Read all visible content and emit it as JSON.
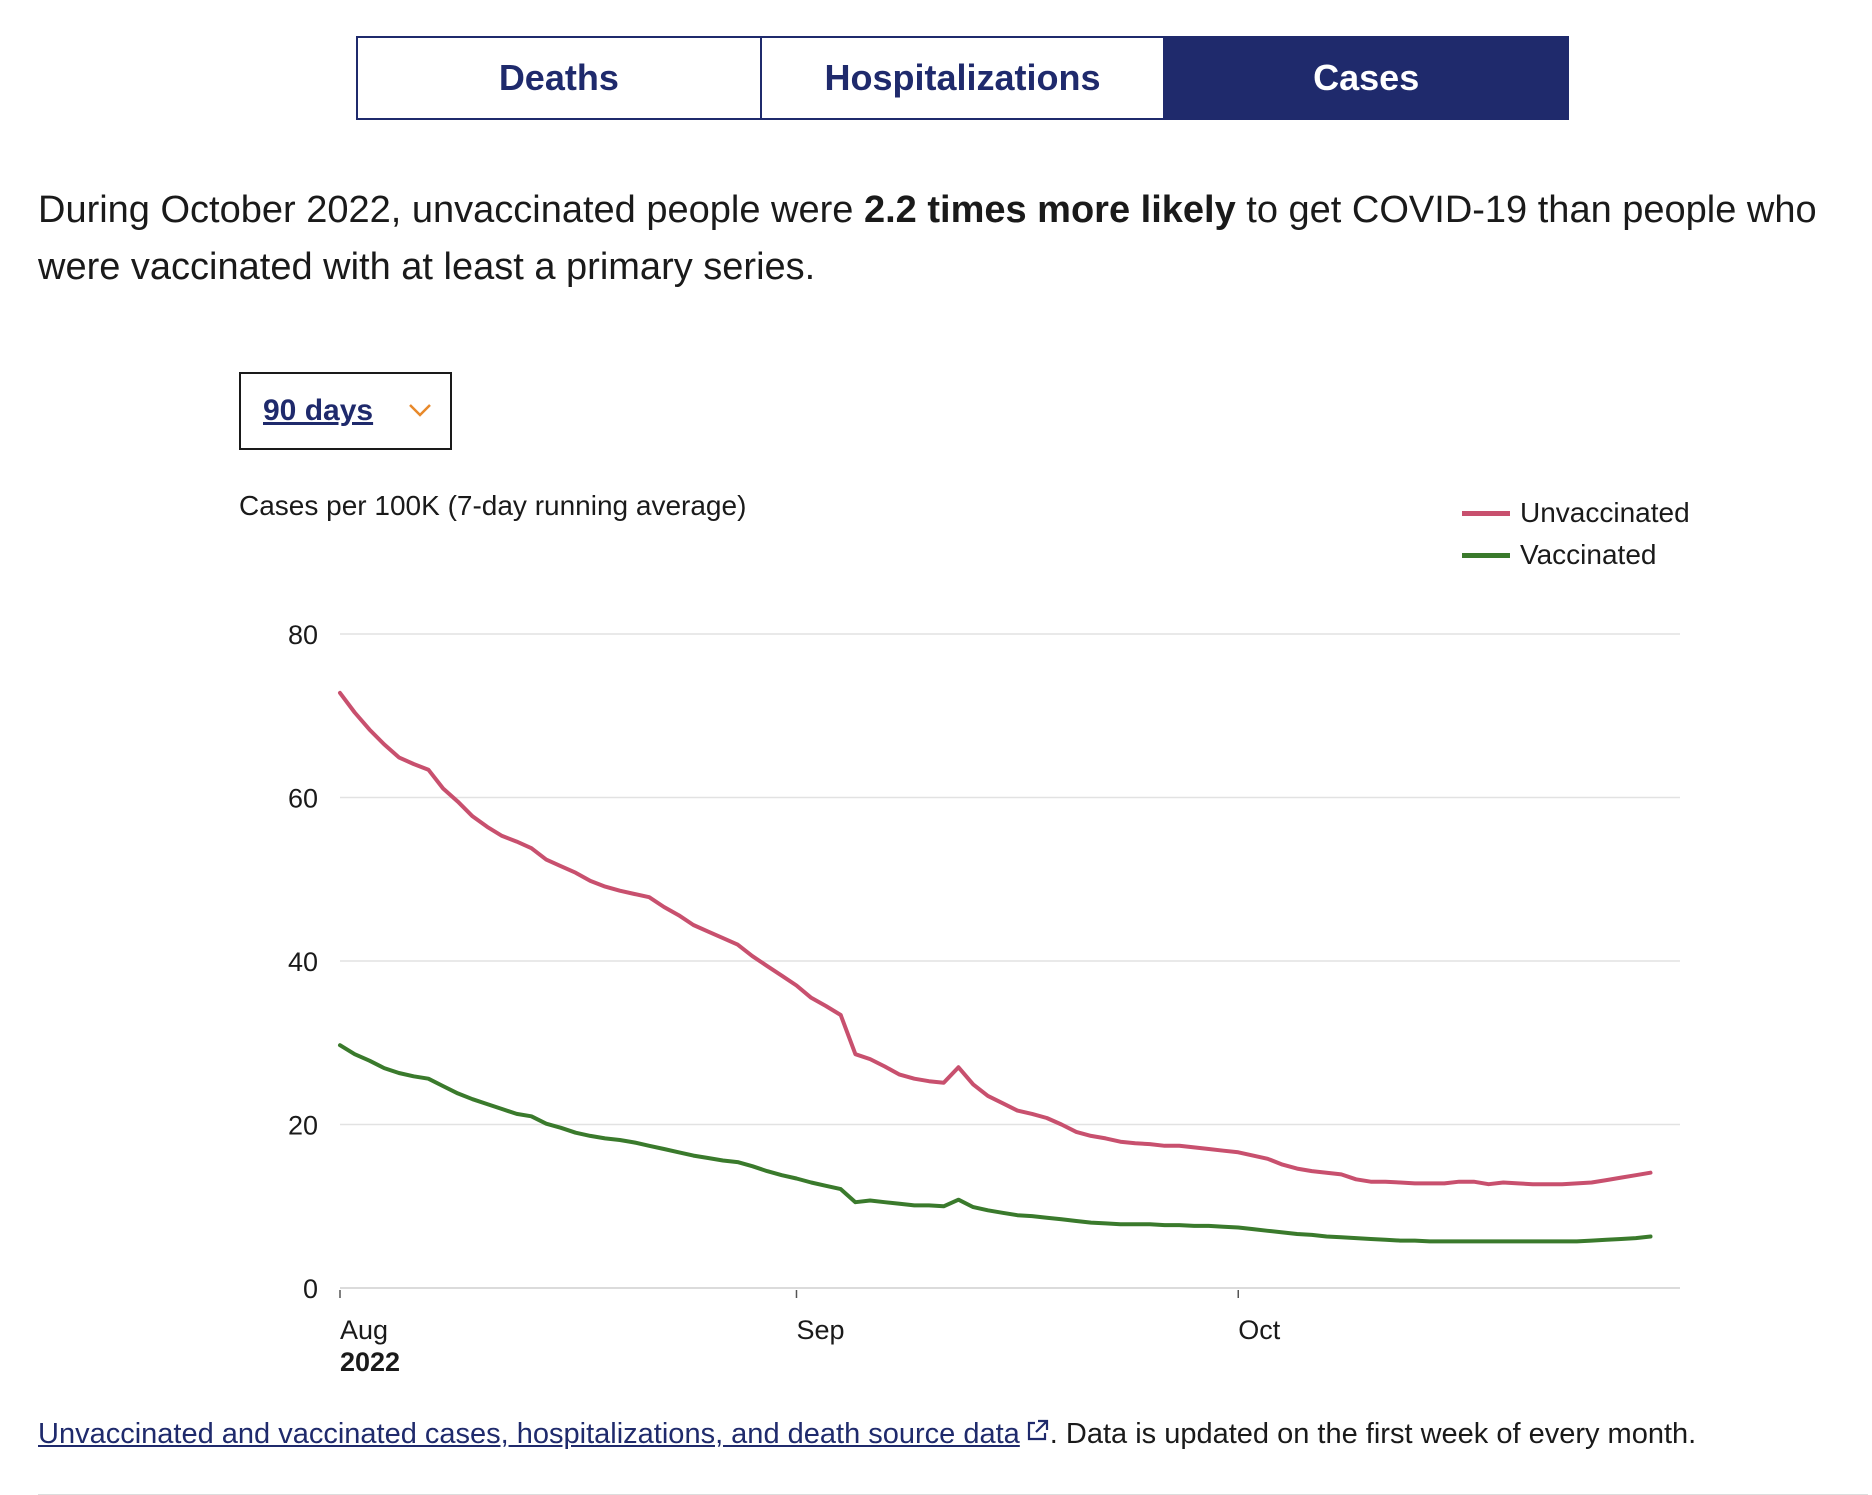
{
  "tabs": [
    {
      "label": "Deaths",
      "active": false
    },
    {
      "label": "Hospitalizations",
      "active": false
    },
    {
      "label": "Cases",
      "active": true
    }
  ],
  "summary": {
    "before": "During October 2022, unvaccinated people were ",
    "bold": "2.2 times more likely",
    "after": " to get COVID-19 than people who were vaccinated with at least a primary series."
  },
  "range_select": {
    "value": "90 days",
    "icon": "chevron-down-icon"
  },
  "footer": {
    "link_text": "Unvaccinated and vaccinated cases, hospitalizations, and death source data",
    "rest": ". Data is updated on the first week of every month."
  },
  "colors": {
    "unvaccinated": "#c8506e",
    "vaccinated": "#3a7a2c",
    "brand": "#1f2a6c",
    "chevron": "#e8892a"
  },
  "chart_data": {
    "type": "line",
    "ylabel": "Cases per 100K (7-day running average)",
    "ylim": [
      0,
      80
    ],
    "yticks": [
      0,
      20,
      40,
      60,
      80
    ],
    "xlim": [
      "2022-08-01",
      "2022-10-31"
    ],
    "xticks": [
      {
        "date": "2022-08-01",
        "label": "Aug",
        "sublabel": "2022"
      },
      {
        "date": "2022-09-01",
        "label": "Sep",
        "sublabel": ""
      },
      {
        "date": "2022-10-01",
        "label": "Oct",
        "sublabel": ""
      }
    ],
    "grid": true,
    "legend_position": "top-right",
    "series": [
      {
        "name": "Unvaccinated",
        "points": [
          [
            "2022-08-01",
            72.8
          ],
          [
            "2022-08-02",
            70.4
          ],
          [
            "2022-08-03",
            68.3
          ],
          [
            "2022-08-04",
            66.5
          ],
          [
            "2022-08-05",
            64.9
          ],
          [
            "2022-08-06",
            64.1
          ],
          [
            "2022-08-07",
            63.4
          ],
          [
            "2022-08-08",
            61.1
          ],
          [
            "2022-08-09",
            59.5
          ],
          [
            "2022-08-10",
            57.7
          ],
          [
            "2022-08-11",
            56.4
          ],
          [
            "2022-08-12",
            55.3
          ],
          [
            "2022-08-13",
            54.6
          ],
          [
            "2022-08-14",
            53.8
          ],
          [
            "2022-08-15",
            52.4
          ],
          [
            "2022-08-16",
            51.6
          ],
          [
            "2022-08-17",
            50.8
          ],
          [
            "2022-08-18",
            49.8
          ],
          [
            "2022-08-19",
            49.1
          ],
          [
            "2022-08-20",
            48.6
          ],
          [
            "2022-08-21",
            48.2
          ],
          [
            "2022-08-22",
            47.8
          ],
          [
            "2022-08-23",
            46.6
          ],
          [
            "2022-08-24",
            45.6
          ],
          [
            "2022-08-25",
            44.4
          ],
          [
            "2022-08-26",
            43.6
          ],
          [
            "2022-08-27",
            42.8
          ],
          [
            "2022-08-28",
            42.0
          ],
          [
            "2022-08-29",
            40.6
          ],
          [
            "2022-08-30",
            39.4
          ],
          [
            "2022-08-31",
            38.2
          ],
          [
            "2022-09-01",
            37.0
          ],
          [
            "2022-09-02",
            35.5
          ],
          [
            "2022-09-03",
            34.5
          ],
          [
            "2022-09-04",
            33.4
          ],
          [
            "2022-09-05",
            28.6
          ],
          [
            "2022-09-06",
            28.0
          ],
          [
            "2022-09-07",
            27.1
          ],
          [
            "2022-09-08",
            26.1
          ],
          [
            "2022-09-09",
            25.6
          ],
          [
            "2022-09-10",
            25.3
          ],
          [
            "2022-09-11",
            25.1
          ],
          [
            "2022-09-12",
            27.0
          ],
          [
            "2022-09-13",
            24.9
          ],
          [
            "2022-09-14",
            23.5
          ],
          [
            "2022-09-15",
            22.6
          ],
          [
            "2022-09-16",
            21.7
          ],
          [
            "2022-09-17",
            21.3
          ],
          [
            "2022-09-18",
            20.8
          ],
          [
            "2022-09-19",
            20.0
          ],
          [
            "2022-09-20",
            19.1
          ],
          [
            "2022-09-21",
            18.6
          ],
          [
            "2022-09-22",
            18.3
          ],
          [
            "2022-09-23",
            17.9
          ],
          [
            "2022-09-24",
            17.7
          ],
          [
            "2022-09-25",
            17.6
          ],
          [
            "2022-09-26",
            17.4
          ],
          [
            "2022-09-27",
            17.4
          ],
          [
            "2022-09-28",
            17.2
          ],
          [
            "2022-09-29",
            17.0
          ],
          [
            "2022-09-30",
            16.8
          ],
          [
            "2022-10-01",
            16.6
          ],
          [
            "2022-10-02",
            16.2
          ],
          [
            "2022-10-03",
            15.8
          ],
          [
            "2022-10-04",
            15.1
          ],
          [
            "2022-10-05",
            14.6
          ],
          [
            "2022-10-06",
            14.3
          ],
          [
            "2022-10-07",
            14.1
          ],
          [
            "2022-10-08",
            13.9
          ],
          [
            "2022-10-09",
            13.3
          ],
          [
            "2022-10-10",
            13.0
          ],
          [
            "2022-10-11",
            13.0
          ],
          [
            "2022-10-12",
            12.9
          ],
          [
            "2022-10-13",
            12.8
          ],
          [
            "2022-10-14",
            12.8
          ],
          [
            "2022-10-15",
            12.8
          ],
          [
            "2022-10-16",
            13.0
          ],
          [
            "2022-10-17",
            13.0
          ],
          [
            "2022-10-18",
            12.7
          ],
          [
            "2022-10-19",
            12.9
          ],
          [
            "2022-10-20",
            12.8
          ],
          [
            "2022-10-21",
            12.7
          ],
          [
            "2022-10-22",
            12.7
          ],
          [
            "2022-10-23",
            12.7
          ],
          [
            "2022-10-24",
            12.8
          ],
          [
            "2022-10-25",
            12.9
          ],
          [
            "2022-10-26",
            13.2
          ],
          [
            "2022-10-27",
            13.5
          ],
          [
            "2022-10-28",
            13.8
          ],
          [
            "2022-10-29",
            14.1
          ]
        ]
      },
      {
        "name": "Vaccinated",
        "points": [
          [
            "2022-08-01",
            29.7
          ],
          [
            "2022-08-02",
            28.6
          ],
          [
            "2022-08-03",
            27.8
          ],
          [
            "2022-08-04",
            26.9
          ],
          [
            "2022-08-05",
            26.3
          ],
          [
            "2022-08-06",
            25.9
          ],
          [
            "2022-08-07",
            25.6
          ],
          [
            "2022-08-08",
            24.7
          ],
          [
            "2022-08-09",
            23.8
          ],
          [
            "2022-08-10",
            23.1
          ],
          [
            "2022-08-11",
            22.5
          ],
          [
            "2022-08-12",
            21.9
          ],
          [
            "2022-08-13",
            21.3
          ],
          [
            "2022-08-14",
            21.0
          ],
          [
            "2022-08-15",
            20.1
          ],
          [
            "2022-08-16",
            19.6
          ],
          [
            "2022-08-17",
            19.0
          ],
          [
            "2022-08-18",
            18.6
          ],
          [
            "2022-08-19",
            18.3
          ],
          [
            "2022-08-20",
            18.1
          ],
          [
            "2022-08-21",
            17.8
          ],
          [
            "2022-08-22",
            17.4
          ],
          [
            "2022-08-23",
            17.0
          ],
          [
            "2022-08-24",
            16.6
          ],
          [
            "2022-08-25",
            16.2
          ],
          [
            "2022-08-26",
            15.9
          ],
          [
            "2022-08-27",
            15.6
          ],
          [
            "2022-08-28",
            15.4
          ],
          [
            "2022-08-29",
            14.9
          ],
          [
            "2022-08-30",
            14.3
          ],
          [
            "2022-08-31",
            13.8
          ],
          [
            "2022-09-01",
            13.4
          ],
          [
            "2022-09-02",
            12.9
          ],
          [
            "2022-09-03",
            12.5
          ],
          [
            "2022-09-04",
            12.1
          ],
          [
            "2022-09-05",
            10.5
          ],
          [
            "2022-09-06",
            10.7
          ],
          [
            "2022-09-07",
            10.5
          ],
          [
            "2022-09-08",
            10.3
          ],
          [
            "2022-09-09",
            10.1
          ],
          [
            "2022-09-10",
            10.1
          ],
          [
            "2022-09-11",
            10.0
          ],
          [
            "2022-09-12",
            10.8
          ],
          [
            "2022-09-13",
            9.9
          ],
          [
            "2022-09-14",
            9.5
          ],
          [
            "2022-09-15",
            9.2
          ],
          [
            "2022-09-16",
            8.9
          ],
          [
            "2022-09-17",
            8.8
          ],
          [
            "2022-09-18",
            8.6
          ],
          [
            "2022-09-19",
            8.4
          ],
          [
            "2022-09-20",
            8.2
          ],
          [
            "2022-09-21",
            8.0
          ],
          [
            "2022-09-22",
            7.9
          ],
          [
            "2022-09-23",
            7.8
          ],
          [
            "2022-09-24",
            7.8
          ],
          [
            "2022-09-25",
            7.8
          ],
          [
            "2022-09-26",
            7.7
          ],
          [
            "2022-09-27",
            7.7
          ],
          [
            "2022-09-28",
            7.6
          ],
          [
            "2022-09-29",
            7.6
          ],
          [
            "2022-09-30",
            7.5
          ],
          [
            "2022-10-01",
            7.4
          ],
          [
            "2022-10-02",
            7.2
          ],
          [
            "2022-10-03",
            7.0
          ],
          [
            "2022-10-04",
            6.8
          ],
          [
            "2022-10-05",
            6.6
          ],
          [
            "2022-10-06",
            6.5
          ],
          [
            "2022-10-07",
            6.3
          ],
          [
            "2022-10-08",
            6.2
          ],
          [
            "2022-10-09",
            6.1
          ],
          [
            "2022-10-10",
            6.0
          ],
          [
            "2022-10-11",
            5.9
          ],
          [
            "2022-10-12",
            5.8
          ],
          [
            "2022-10-13",
            5.8
          ],
          [
            "2022-10-14",
            5.7
          ],
          [
            "2022-10-15",
            5.7
          ],
          [
            "2022-10-16",
            5.7
          ],
          [
            "2022-10-17",
            5.7
          ],
          [
            "2022-10-18",
            5.7
          ],
          [
            "2022-10-19",
            5.7
          ],
          [
            "2022-10-20",
            5.7
          ],
          [
            "2022-10-21",
            5.7
          ],
          [
            "2022-10-22",
            5.7
          ],
          [
            "2022-10-23",
            5.7
          ],
          [
            "2022-10-24",
            5.7
          ],
          [
            "2022-10-25",
            5.8
          ],
          [
            "2022-10-26",
            5.9
          ],
          [
            "2022-10-27",
            6.0
          ],
          [
            "2022-10-28",
            6.1
          ],
          [
            "2022-10-29",
            6.3
          ]
        ]
      }
    ]
  }
}
